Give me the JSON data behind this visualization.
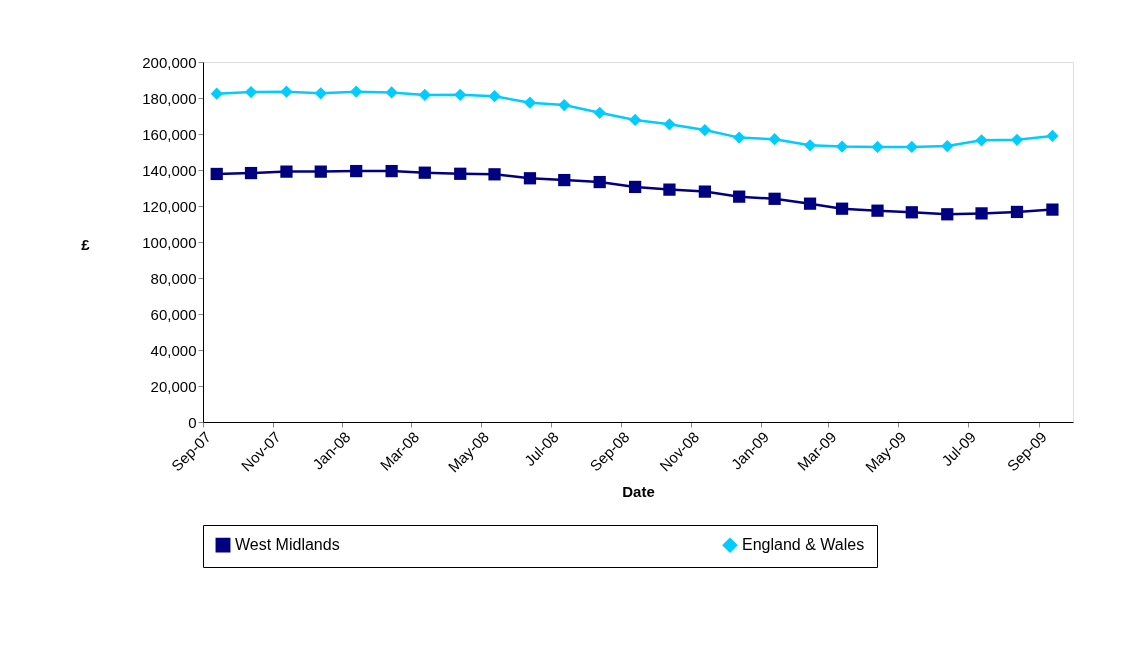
{
  "chart_data": {
    "type": "line",
    "xlabel": "Date",
    "ylabel": "£",
    "x": [
      "2007-09-13",
      "2007-10-13",
      "2007-11-13",
      "2007-12-13",
      "2008-01-13",
      "2008-02-13",
      "2008-03-13",
      "2008-04-13",
      "2008-05-13",
      "2008-06-13",
      "2008-07-13",
      "2008-08-13",
      "2008-09-13",
      "2008-10-13",
      "2008-11-13",
      "2008-12-13",
      "2009-01-13",
      "2009-02-13",
      "2009-03-13",
      "2009-04-13",
      "2009-05-13",
      "2009-06-13",
      "2009-07-13",
      "2009-08-13",
      "2009-09-13"
    ],
    "series": [
      {
        "name": "West Midlands",
        "color": "#000080",
        "marker": "square",
        "values": [
          137800,
          138300,
          139100,
          139100,
          139400,
          139400,
          138500,
          137900,
          137600,
          135400,
          134400,
          133300,
          130600,
          129100,
          128000,
          125200,
          124000,
          121300,
          118500,
          117400,
          116500,
          115400,
          115900,
          116700,
          118000
        ]
      },
      {
        "name": "England & Wales",
        "color": "#00ccff",
        "marker": "diamond",
        "values": [
          182400,
          183300,
          183500,
          182600,
          183500,
          183100,
          181700,
          181800,
          181000,
          177400,
          176100,
          171800,
          167800,
          165400,
          162200,
          158000,
          157100,
          153700,
          153000,
          152800,
          152800,
          153300,
          156500,
          156800,
          158900
        ]
      }
    ],
    "xlim": [
      "2007-09-01",
      "2009-10-01"
    ],
    "xticks": [
      {
        "value": "2007-09-01",
        "label": "Sep-07"
      },
      {
        "value": "2007-11-01",
        "label": "Nov-07"
      },
      {
        "value": "2008-01-01",
        "label": "Jan-08"
      },
      {
        "value": "2008-03-01",
        "label": "Mar-08"
      },
      {
        "value": "2008-05-01",
        "label": "May-08"
      },
      {
        "value": "2008-07-01",
        "label": "Jul-08"
      },
      {
        "value": "2008-09-01",
        "label": "Sep-08"
      },
      {
        "value": "2008-11-01",
        "label": "Nov-08"
      },
      {
        "value": "2009-01-01",
        "label": "Jan-09"
      },
      {
        "value": "2009-03-01",
        "label": "Mar-09"
      },
      {
        "value": "2009-05-01",
        "label": "May-09"
      },
      {
        "value": "2009-07-01",
        "label": "Jul-09"
      },
      {
        "value": "2009-09-01",
        "label": "Sep-09"
      }
    ],
    "ylim": [
      0,
      200000
    ],
    "yticks": [
      0,
      {
        "value": 20000,
        "label": "20,000"
      },
      {
        "value": 40000,
        "label": "40,000"
      },
      {
        "value": 60000,
        "label": "60,000"
      },
      {
        "value": 80000,
        "label": "80,000"
      },
      {
        "value": 100000,
        "label": "100,000"
      },
      {
        "value": 120000,
        "label": "120,000"
      },
      {
        "value": 140000,
        "label": "140,000"
      },
      {
        "value": 160000,
        "label": "160,000"
      },
      {
        "value": 180000,
        "label": "180,000"
      },
      {
        "value": 200000,
        "label": "200,000"
      }
    ],
    "grid": false,
    "legend": "bottom",
    "line_style": "solid"
  }
}
